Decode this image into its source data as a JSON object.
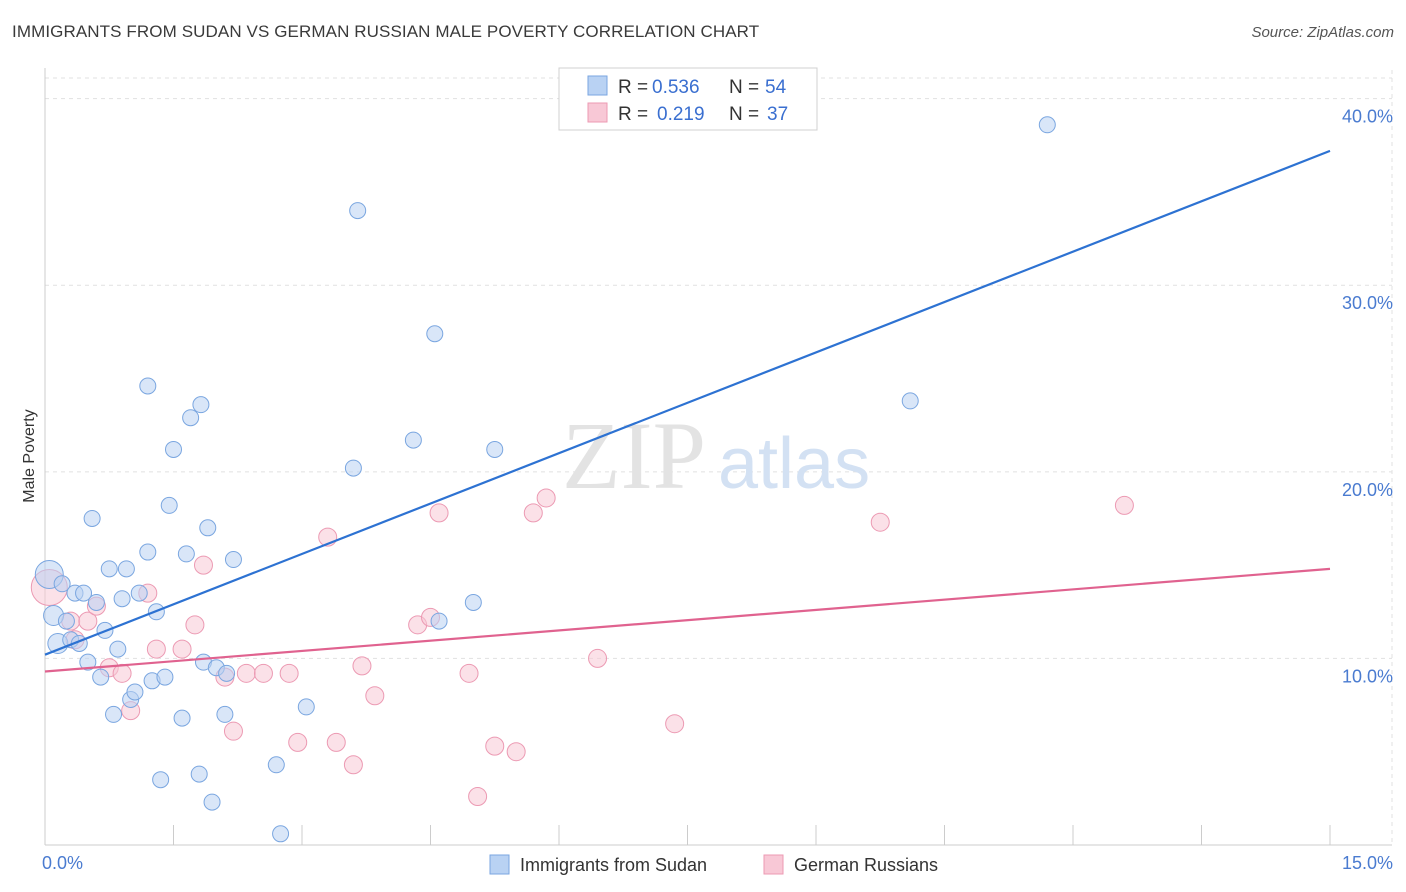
{
  "header": {
    "title": "IMMIGRANTS FROM SUDAN VS GERMAN RUSSIAN MALE POVERTY CORRELATION CHART",
    "source": "Source: ZipAtlas.com"
  },
  "watermark": {
    "zip": "ZIP",
    "atlas": "atlas"
  },
  "colors": {
    "blue_fill": "#b9d2f3",
    "blue_stroke": "#7aa6e0",
    "blue_line": "#2d72d2",
    "pink_fill": "#f8c8d6",
    "pink_stroke": "#ec9ab3",
    "pink_line": "#e0628f",
    "grid": "#e1e1e1",
    "tick_text": "#4a7bd0"
  },
  "chart_data": {
    "type": "scatter",
    "title": "IMMIGRANTS FROM SUDAN VS GERMAN RUSSIAN MALE POVERTY CORRELATION CHART",
    "xlabel": "",
    "ylabel": "Male Poverty",
    "xlim": [
      0,
      15
    ],
    "ylim": [
      0,
      41
    ],
    "x_tick_labels": [
      {
        "value": 0,
        "label": "0.0%"
      },
      {
        "value": 15,
        "label": "15.0%"
      }
    ],
    "y_tick_labels": [
      {
        "value": 10,
        "label": "10.0%"
      },
      {
        "value": 20,
        "label": "20.0%"
      },
      {
        "value": 30,
        "label": "30.0%"
      },
      {
        "value": 40,
        "label": "40.0%"
      }
    ],
    "legend": [
      {
        "r_label": "R =",
        "r_value": "0.536",
        "n_label": "N =",
        "n_value": "54"
      },
      {
        "r_label": "R =",
        "r_value": "0.219",
        "n_label": "N =",
        "n_value": "37"
      }
    ],
    "series": [
      {
        "name": "Immigrants from Sudan",
        "color": "#b9d2f3",
        "trend": {
          "x0": 0,
          "y0": 10.2,
          "x1": 15,
          "y1": 37.2
        },
        "points": [
          [
            0.05,
            14.5,
            14
          ],
          [
            0.1,
            12.3,
            10
          ],
          [
            0.15,
            10.8,
            10
          ],
          [
            0.2,
            14.0,
            8
          ],
          [
            0.25,
            12.0,
            8
          ],
          [
            0.3,
            11.0,
            8
          ],
          [
            0.35,
            13.5,
            8
          ],
          [
            0.4,
            10.8,
            8
          ],
          [
            0.45,
            13.5,
            8
          ],
          [
            0.5,
            9.8,
            8
          ],
          [
            0.55,
            17.5,
            8
          ],
          [
            0.6,
            13.0,
            8
          ],
          [
            0.65,
            9.0,
            8
          ],
          [
            0.7,
            11.5,
            8
          ],
          [
            0.75,
            14.8,
            8
          ],
          [
            0.8,
            7.0,
            8
          ],
          [
            0.85,
            10.5,
            8
          ],
          [
            0.9,
            13.2,
            8
          ],
          [
            0.95,
            14.8,
            8
          ],
          [
            1.0,
            7.8,
            8
          ],
          [
            1.05,
            8.2,
            8
          ],
          [
            1.1,
            13.5,
            8
          ],
          [
            1.2,
            15.7,
            8
          ],
          [
            1.2,
            24.6,
            8
          ],
          [
            1.25,
            8.8,
            8
          ],
          [
            1.3,
            12.5,
            8
          ],
          [
            1.35,
            3.5,
            8
          ],
          [
            1.4,
            9.0,
            8
          ],
          [
            1.45,
            18.2,
            8
          ],
          [
            1.5,
            21.2,
            8
          ],
          [
            1.6,
            6.8,
            8
          ],
          [
            1.65,
            15.6,
            8
          ],
          [
            1.7,
            22.9,
            8
          ],
          [
            1.8,
            3.8,
            8
          ],
          [
            1.82,
            23.6,
            8
          ],
          [
            1.85,
            9.8,
            8
          ],
          [
            1.9,
            17.0,
            8
          ],
          [
            1.95,
            2.3,
            8
          ],
          [
            2.0,
            9.5,
            8
          ],
          [
            2.1,
            7.0,
            8
          ],
          [
            2.12,
            9.2,
            8
          ],
          [
            2.2,
            15.3,
            8
          ],
          [
            2.7,
            4.3,
            8
          ],
          [
            2.75,
            0.6,
            8
          ],
          [
            3.05,
            7.4,
            8
          ],
          [
            3.6,
            20.2,
            8
          ],
          [
            3.65,
            34.0,
            8
          ],
          [
            4.3,
            21.7,
            8
          ],
          [
            4.55,
            27.4,
            8
          ],
          [
            4.6,
            12.0,
            8
          ],
          [
            5.0,
            13.0,
            8
          ],
          [
            5.25,
            21.2,
            8
          ],
          [
            10.1,
            23.8,
            8
          ],
          [
            11.7,
            38.6,
            8
          ]
        ]
      },
      {
        "name": "German Russians",
        "color": "#f8c8d6",
        "trend": {
          "x0": 0,
          "y0": 9.3,
          "x1": 15,
          "y1": 14.8
        },
        "points": [
          [
            0.05,
            13.8,
            18
          ],
          [
            0.3,
            12.0,
            9
          ],
          [
            0.35,
            11.0,
            9
          ],
          [
            0.5,
            12.0,
            9
          ],
          [
            0.6,
            12.8,
            9
          ],
          [
            0.75,
            9.5,
            9
          ],
          [
            0.9,
            9.2,
            9
          ],
          [
            1.0,
            7.2,
            9
          ],
          [
            1.2,
            13.5,
            9
          ],
          [
            1.3,
            10.5,
            9
          ],
          [
            1.6,
            10.5,
            9
          ],
          [
            1.75,
            11.8,
            9
          ],
          [
            1.85,
            15.0,
            9
          ],
          [
            2.1,
            9.0,
            9
          ],
          [
            2.2,
            6.1,
            9
          ],
          [
            2.35,
            9.2,
            9
          ],
          [
            2.55,
            9.2,
            9
          ],
          [
            2.85,
            9.2,
            9
          ],
          [
            2.95,
            5.5,
            9
          ],
          [
            3.3,
            16.5,
            9
          ],
          [
            3.4,
            5.5,
            9
          ],
          [
            3.6,
            4.3,
            9
          ],
          [
            3.7,
            9.6,
            9
          ],
          [
            3.85,
            8.0,
            9
          ],
          [
            4.35,
            11.8,
            9
          ],
          [
            4.5,
            12.2,
            9
          ],
          [
            4.6,
            17.8,
            9
          ],
          [
            4.95,
            9.2,
            9
          ],
          [
            5.05,
            2.6,
            9
          ],
          [
            5.25,
            5.3,
            9
          ],
          [
            5.5,
            5.0,
            9
          ],
          [
            5.7,
            17.8,
            9
          ],
          [
            5.85,
            18.6,
            9
          ],
          [
            6.45,
            10.0,
            9
          ],
          [
            7.35,
            6.5,
            9
          ],
          [
            9.75,
            17.3,
            9
          ],
          [
            12.6,
            18.2,
            9
          ]
        ]
      }
    ]
  }
}
